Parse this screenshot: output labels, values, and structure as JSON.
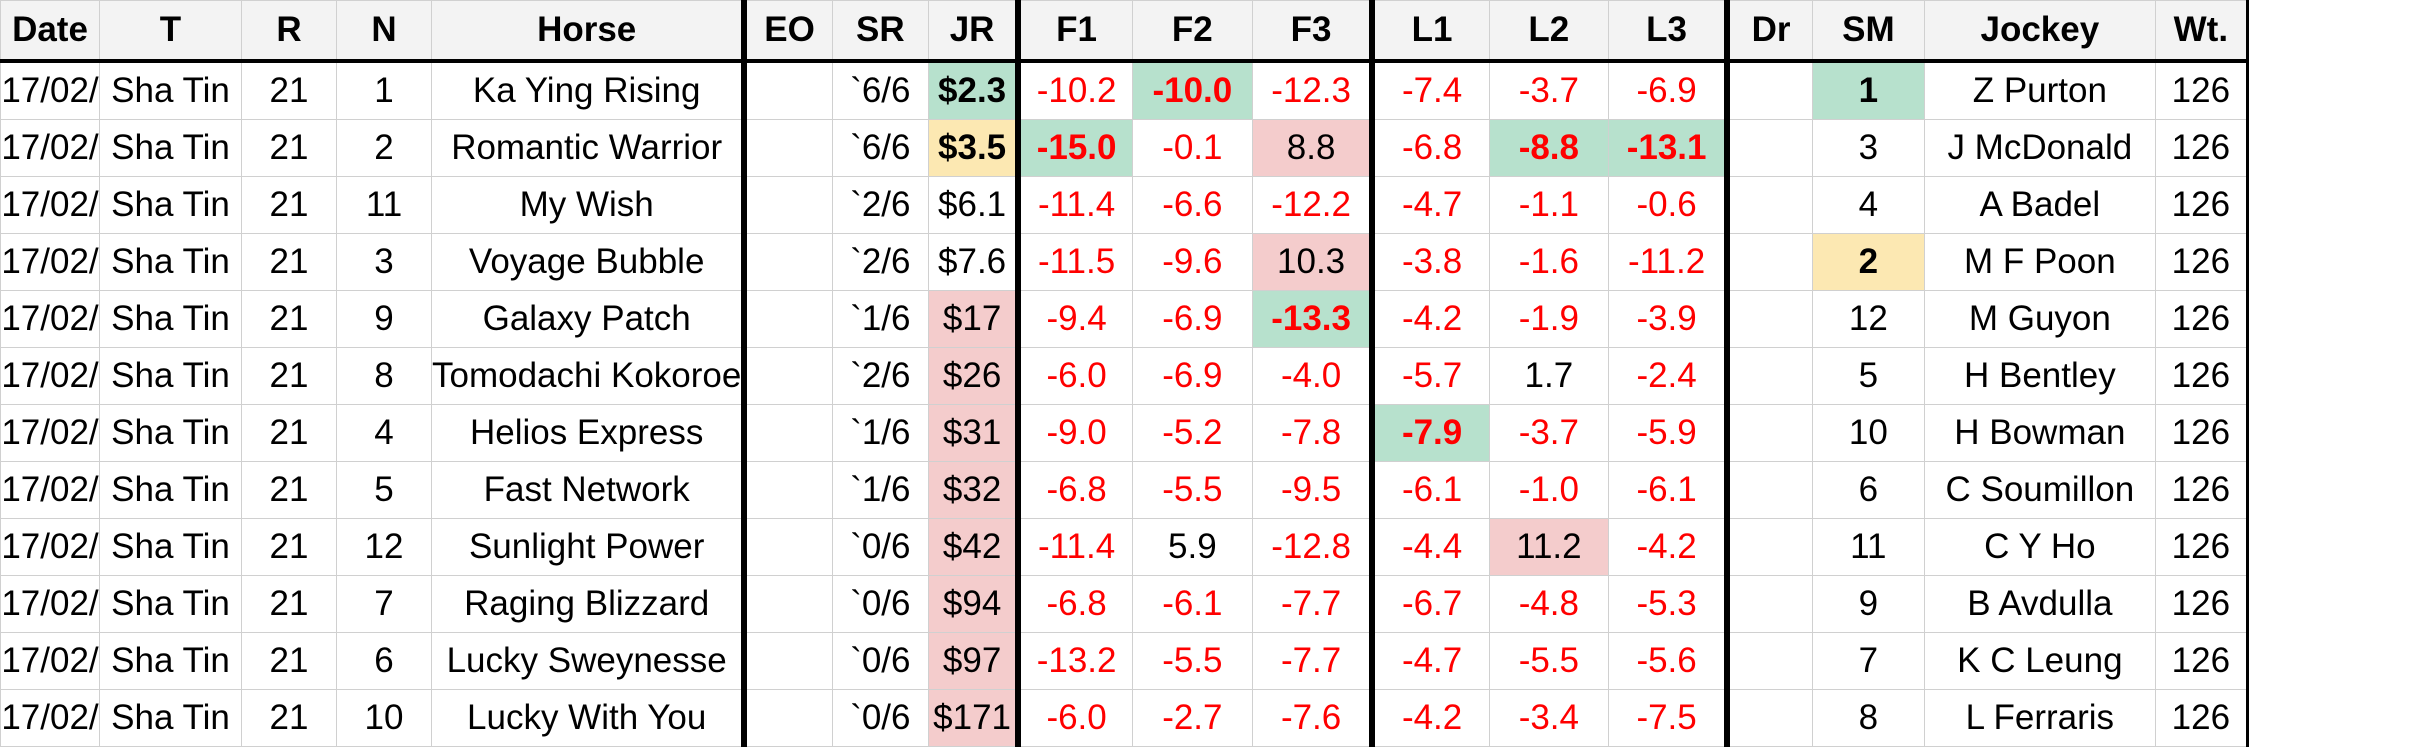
{
  "headers": [
    "Date",
    "T",
    "R",
    "N",
    "Horse",
    "EO",
    "SR",
    "JR",
    "F1",
    "F2",
    "F3",
    "L1",
    "L2",
    "L3",
    "Dr",
    "SM",
    "Jockey",
    "Wt."
  ],
  "colors": {
    "green": "#b7e1cd",
    "amber": "#fce8b2",
    "pink": "#f4cccc",
    "negative": "#ff0000"
  },
  "rows": [
    {
      "date": "17/02/",
      "track": "Sha Tin",
      "race": "21",
      "num": "1",
      "horse": "Ka Ying Rising",
      "eo": "",
      "sr": "`6/6",
      "jr": "$2.3",
      "f1": "-10.2",
      "f2": "-10.0",
      "f3": "-12.3",
      "l1": "-7.4",
      "l2": "-3.7",
      "l3": "-6.9",
      "dr": "",
      "sm": "1",
      "jockey": "Z Purton",
      "wt": "126"
    },
    {
      "date": "17/02/",
      "track": "Sha Tin",
      "race": "21",
      "num": "2",
      "horse": "Romantic Warrior",
      "eo": "",
      "sr": "`6/6",
      "jr": "$3.5",
      "f1": "-15.0",
      "f2": "-0.1",
      "f3": "8.8",
      "l1": "-6.8",
      "l2": "-8.8",
      "l3": "-13.1",
      "dr": "",
      "sm": "3",
      "jockey": "J McDonald",
      "wt": "126"
    },
    {
      "date": "17/02/",
      "track": "Sha Tin",
      "race": "21",
      "num": "11",
      "horse": "My Wish",
      "eo": "",
      "sr": "`2/6",
      "jr": "$6.1",
      "f1": "-11.4",
      "f2": "-6.6",
      "f3": "-12.2",
      "l1": "-4.7",
      "l2": "-1.1",
      "l3": "-0.6",
      "dr": "",
      "sm": "4",
      "jockey": "A Badel",
      "wt": "126"
    },
    {
      "date": "17/02/",
      "track": "Sha Tin",
      "race": "21",
      "num": "3",
      "horse": "Voyage Bubble",
      "eo": "",
      "sr": "`2/6",
      "jr": "$7.6",
      "f1": "-11.5",
      "f2": "-9.6",
      "f3": "10.3",
      "l1": "-3.8",
      "l2": "-1.6",
      "l3": "-11.2",
      "dr": "",
      "sm": "2",
      "jockey": "M F Poon",
      "wt": "126"
    },
    {
      "date": "17/02/",
      "track": "Sha Tin",
      "race": "21",
      "num": "9",
      "horse": "Galaxy Patch",
      "eo": "",
      "sr": "`1/6",
      "jr": "$17",
      "f1": "-9.4",
      "f2": "-6.9",
      "f3": "-13.3",
      "l1": "-4.2",
      "l2": "-1.9",
      "l3": "-3.9",
      "dr": "",
      "sm": "12",
      "jockey": "M Guyon",
      "wt": "126"
    },
    {
      "date": "17/02/",
      "track": "Sha Tin",
      "race": "21",
      "num": "8",
      "horse": "Tomodachi Kokoroe",
      "eo": "",
      "sr": "`2/6",
      "jr": "$26",
      "f1": "-6.0",
      "f2": "-6.9",
      "f3": "-4.0",
      "l1": "-5.7",
      "l2": "1.7",
      "l3": "-2.4",
      "dr": "",
      "sm": "5",
      "jockey": "H Bentley",
      "wt": "126"
    },
    {
      "date": "17/02/",
      "track": "Sha Tin",
      "race": "21",
      "num": "4",
      "horse": "Helios Express",
      "eo": "",
      "sr": "`1/6",
      "jr": "$31",
      "f1": "-9.0",
      "f2": "-5.2",
      "f3": "-7.8",
      "l1": "-7.9",
      "l2": "-3.7",
      "l3": "-5.9",
      "dr": "",
      "sm": "10",
      "jockey": "H Bowman",
      "wt": "126"
    },
    {
      "date": "17/02/",
      "track": "Sha Tin",
      "race": "21",
      "num": "5",
      "horse": "Fast Network",
      "eo": "",
      "sr": "`1/6",
      "jr": "$32",
      "f1": "-6.8",
      "f2": "-5.5",
      "f3": "-9.5",
      "l1": "-6.1",
      "l2": "-1.0",
      "l3": "-6.1",
      "dr": "",
      "sm": "6",
      "jockey": "C Soumillon",
      "wt": "126"
    },
    {
      "date": "17/02/",
      "track": "Sha Tin",
      "race": "21",
      "num": "12",
      "horse": "Sunlight Power",
      "eo": "",
      "sr": "`0/6",
      "jr": "$42",
      "f1": "-11.4",
      "f2": "5.9",
      "f3": "-12.8",
      "l1": "-4.4",
      "l2": "11.2",
      "l3": "-4.2",
      "dr": "",
      "sm": "11",
      "jockey": "C Y Ho",
      "wt": "126"
    },
    {
      "date": "17/02/",
      "track": "Sha Tin",
      "race": "21",
      "num": "7",
      "horse": "Raging Blizzard",
      "eo": "",
      "sr": "`0/6",
      "jr": "$94",
      "f1": "-6.8",
      "f2": "-6.1",
      "f3": "-7.7",
      "l1": "-6.7",
      "l2": "-4.8",
      "l3": "-5.3",
      "dr": "",
      "sm": "9",
      "jockey": "B Avdulla",
      "wt": "126"
    },
    {
      "date": "17/02/",
      "track": "Sha Tin",
      "race": "21",
      "num": "6",
      "horse": "Lucky Sweynesse",
      "eo": "",
      "sr": "`0/6",
      "jr": "$97",
      "f1": "-13.2",
      "f2": "-5.5",
      "f3": "-7.7",
      "l1": "-4.7",
      "l2": "-5.5",
      "l3": "-5.6",
      "dr": "",
      "sm": "7",
      "jockey": "K C Leung",
      "wt": "126"
    },
    {
      "date": "17/02/",
      "track": "Sha Tin",
      "race": "21",
      "num": "10",
      "horse": "Lucky With You",
      "eo": "",
      "sr": "`0/6",
      "jr": "$171",
      "f1": "-6.0",
      "f2": "-2.7",
      "f3": "-7.6",
      "l1": "-4.2",
      "l2": "-3.4",
      "l3": "-7.5",
      "dr": "",
      "sm": "8",
      "jockey": "L Ferraris",
      "wt": "126"
    }
  ]
}
